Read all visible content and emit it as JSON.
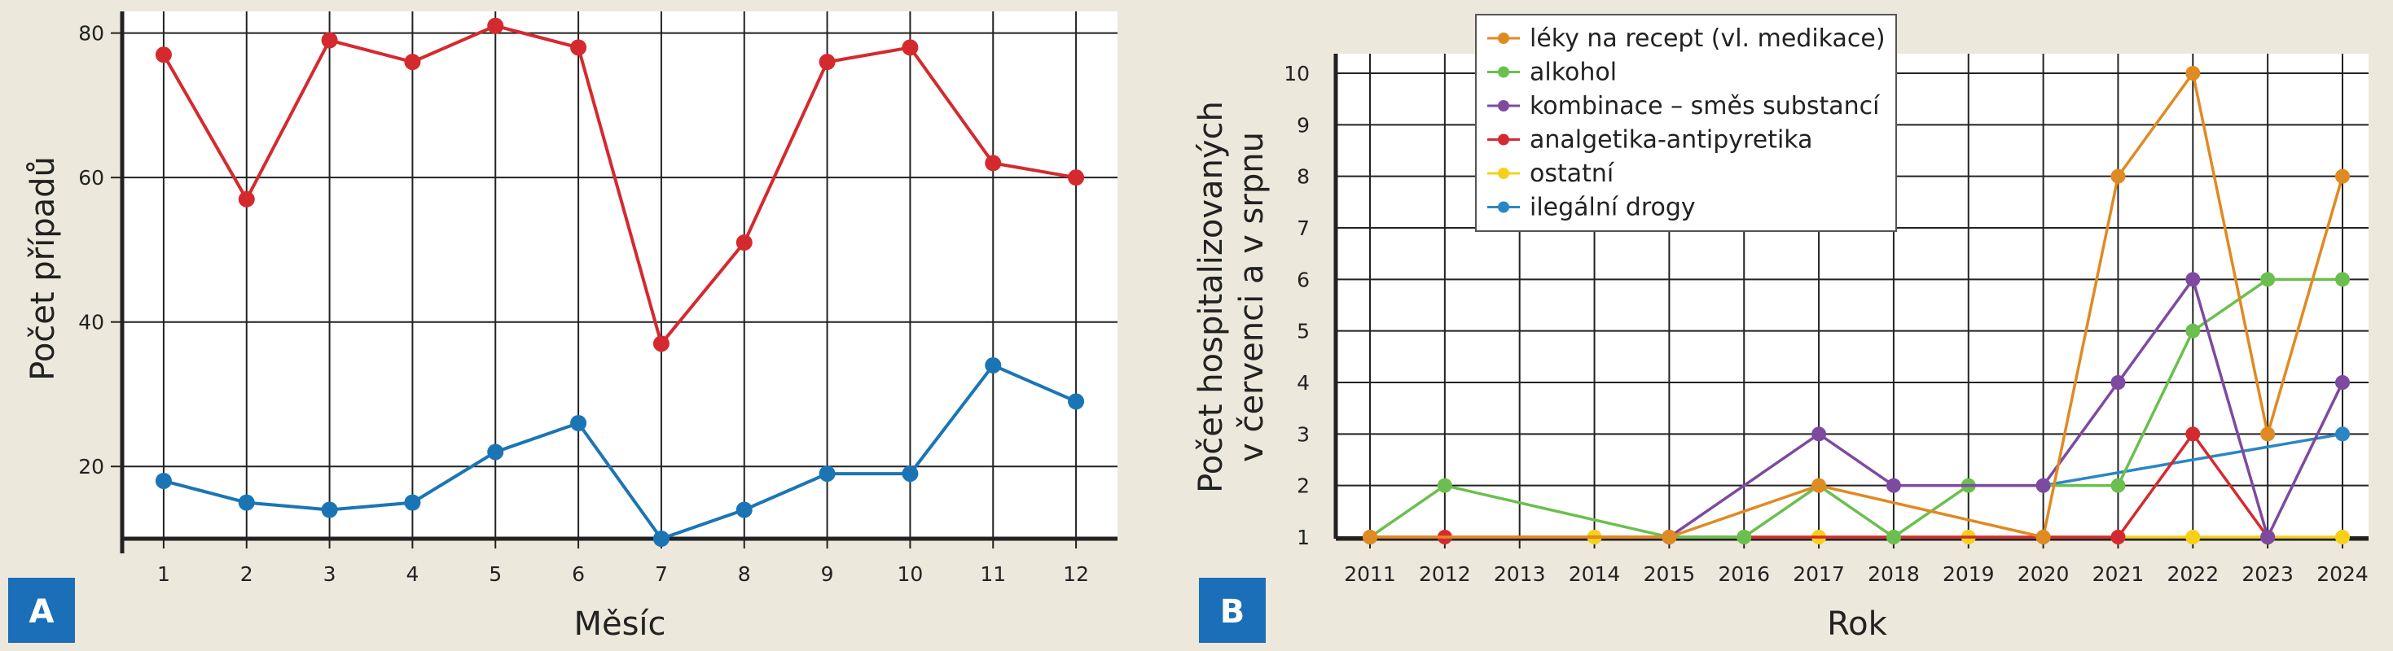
{
  "panels": [
    {
      "badge": "A"
    },
    {
      "badge": "B"
    }
  ],
  "colors": {
    "background": "#ece8dc",
    "plot_background": "#ffffff",
    "badge": "#1a6fb8"
  },
  "chart_data": [
    {
      "type": "line",
      "xlabel": "Měsíc",
      "ylabel": "Počet případů",
      "x": [
        1,
        2,
        3,
        4,
        5,
        6,
        7,
        8,
        9,
        10,
        11,
        12
      ],
      "xticks": [
        "1",
        "2",
        "3",
        "4",
        "5",
        "6",
        "7",
        "8",
        "9",
        "10",
        "11",
        "12"
      ],
      "xlim": [
        0.5,
        12.5
      ],
      "ylim": [
        10,
        83
      ],
      "yticks": [
        20,
        40,
        60,
        80
      ],
      "grid": true,
      "series": [
        {
          "color": "#d42a2f",
          "values": [
            77,
            57,
            79,
            76,
            81,
            78,
            37,
            51,
            76,
            78,
            62,
            60
          ]
        },
        {
          "color": "#1b75b5",
          "values": [
            18,
            15,
            14,
            15,
            22,
            26,
            10,
            14,
            19,
            19,
            34,
            29
          ]
        }
      ]
    },
    {
      "type": "line",
      "xlabel": "Rok",
      "ylabel": [
        "Počet hospitalizovaných",
        "v červenci a v srpnu"
      ],
      "xticks": [
        "2011",
        "2012",
        "2013",
        "2014",
        "2015",
        "2016",
        "2017",
        "2018",
        "2019",
        "2020",
        "2021",
        "2022",
        "2023",
        "2024"
      ],
      "xlim": [
        2011,
        2024
      ],
      "ylim": [
        1,
        10
      ],
      "yticks": [
        1,
        2,
        3,
        4,
        5,
        6,
        7,
        8,
        9,
        10
      ],
      "grid": true,
      "legend": "top-left",
      "series": [
        {
          "name": "ostatní",
          "color": "#f7d117",
          "points": [
            [
              2014,
              1
            ],
            [
              2015,
              1
            ],
            [
              2016,
              1
            ],
            [
              2017,
              1
            ],
            [
              2018,
              1
            ],
            [
              2019,
              1
            ],
            [
              2020,
              1
            ],
            [
              2021,
              1
            ],
            [
              2022,
              1
            ],
            [
              2023,
              1
            ],
            [
              2024,
              1
            ]
          ]
        },
        {
          "name": "ilegální drogy",
          "color": "#2b86c4",
          "points": [
            [
              2020,
              2
            ],
            [
              2024,
              3
            ]
          ]
        },
        {
          "name": "analgetika-antipyretika",
          "color": "#d42a2f",
          "points": [
            [
              2011,
              1
            ],
            [
              2012,
              1
            ],
            [
              2015,
              1
            ],
            [
              2021,
              1
            ],
            [
              2022,
              3
            ],
            [
              2023,
              1
            ]
          ]
        },
        {
          "name": "alkohol",
          "color": "#6bbf4e",
          "points": [
            [
              2011,
              1
            ],
            [
              2012,
              2
            ],
            [
              2015,
              1
            ],
            [
              2016,
              1
            ],
            [
              2017,
              2
            ],
            [
              2018,
              1
            ],
            [
              2019,
              2
            ],
            [
              2020,
              2
            ],
            [
              2021,
              2
            ],
            [
              2022,
              5
            ],
            [
              2023,
              6
            ],
            [
              2024,
              6
            ]
          ]
        },
        {
          "name": "kombinace – směs substancí",
          "color": "#7d4aa0",
          "points": [
            [
              2015,
              1
            ],
            [
              2017,
              3
            ],
            [
              2018,
              2
            ],
            [
              2020,
              2
            ],
            [
              2021,
              4
            ],
            [
              2022,
              6
            ],
            [
              2023,
              1
            ],
            [
              2024,
              4
            ]
          ]
        },
        {
          "name": "léky na recept (vl. medikace)",
          "color": "#e08a22",
          "points": [
            [
              2011,
              1
            ],
            [
              2015,
              1
            ],
            [
              2017,
              2
            ],
            [
              2020,
              1
            ],
            [
              2021,
              8
            ],
            [
              2022,
              10
            ],
            [
              2023,
              3
            ],
            [
              2024,
              8
            ]
          ]
        }
      ],
      "legend_order": [
        5,
        3,
        4,
        2,
        0,
        1
      ]
    }
  ]
}
